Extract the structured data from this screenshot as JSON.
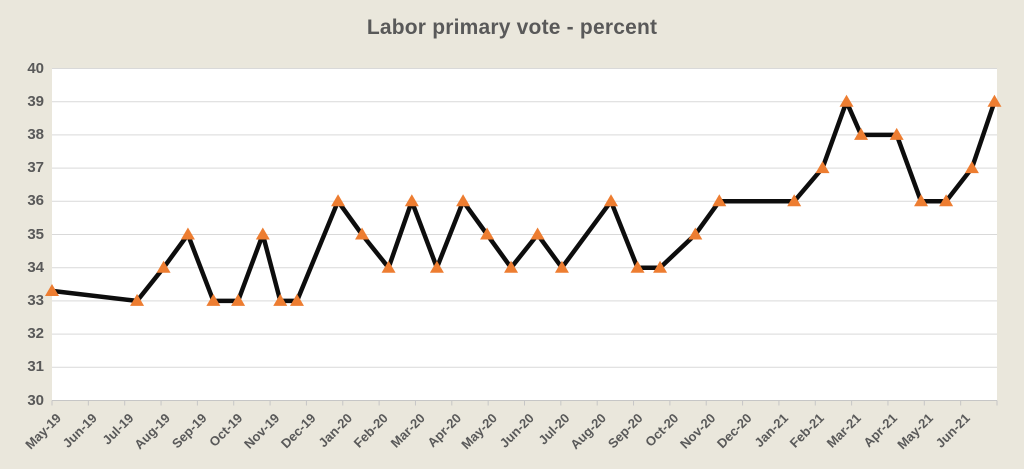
{
  "chart_data": {
    "type": "line",
    "title": "Labor primary vote - percent",
    "xlabel": "",
    "ylabel": "",
    "ylim": [
      30,
      40
    ],
    "y_tick_step": 1,
    "y_tick_labels": [
      "40",
      "39",
      "38",
      "37",
      "36",
      "35",
      "34",
      "33",
      "32",
      "31",
      "30"
    ],
    "x_tick_labels": [
      "May-19",
      "Jun-19",
      "Jul-19",
      "Aug-19",
      "Sep-19",
      "Oct-19",
      "Nov-19",
      "Dec-19",
      "Jan-20",
      "Feb-20",
      "Mar-20",
      "Apr-20",
      "May-20",
      "Jun-20",
      "Jul-20",
      "Aug-20",
      "Sep-20",
      "Oct-20",
      "Nov-20",
      "Dec-20",
      "Jan-21",
      "Feb-21",
      "Mar-21",
      "Apr-21",
      "May-21",
      "Jun-21"
    ],
    "x_axis_span_months": 26,
    "grid": "horizontal",
    "legend_position": "none",
    "point_format": "[months_from_May19_axis_start, percent]",
    "series": [
      {
        "marker": "triangle",
        "points": [
          [
            0.0,
            33.3
          ],
          [
            2.34,
            33
          ],
          [
            3.07,
            34
          ],
          [
            3.74,
            35
          ],
          [
            4.44,
            33
          ],
          [
            5.12,
            33
          ],
          [
            5.8,
            35
          ],
          [
            6.28,
            33
          ],
          [
            6.74,
            33
          ],
          [
            7.87,
            36
          ],
          [
            8.53,
            35
          ],
          [
            9.26,
            34
          ],
          [
            9.9,
            36
          ],
          [
            10.59,
            34
          ],
          [
            11.31,
            36
          ],
          [
            11.97,
            35
          ],
          [
            12.63,
            34
          ],
          [
            13.36,
            35
          ],
          [
            14.03,
            34
          ],
          [
            15.38,
            36
          ],
          [
            16.11,
            34
          ],
          [
            16.73,
            34
          ],
          [
            17.7,
            35
          ],
          [
            18.36,
            36
          ],
          [
            20.42,
            36
          ],
          [
            21.2,
            37
          ],
          [
            21.86,
            39
          ],
          [
            22.26,
            38
          ],
          [
            23.24,
            38
          ],
          [
            23.91,
            36
          ],
          [
            24.6,
            36
          ],
          [
            25.31,
            37
          ],
          [
            25.93,
            39
          ]
        ]
      }
    ]
  },
  "colors": {
    "canvas_background": "#EAE7DC",
    "plot_background": "#FFFFFF",
    "gridline": "#D9D9D9",
    "axis_line": "#C6C6C6",
    "tick_mark": "#C6C6C6",
    "text": "#595959",
    "data_line": "#0D0D0D",
    "marker_fill": "#ED7D31"
  }
}
